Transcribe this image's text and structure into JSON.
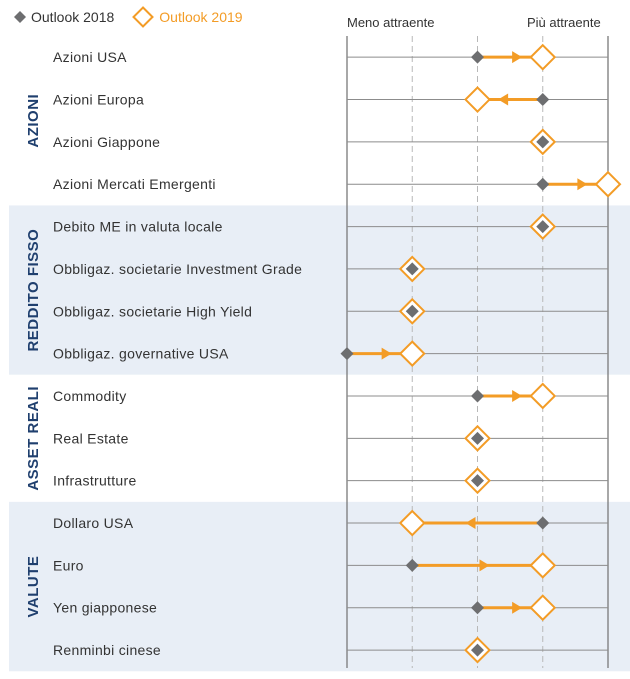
{
  "legend": {
    "outlook_2018": "Outlook 2018",
    "outlook_2019": "Outlook 2019"
  },
  "colors": {
    "outlook_2018": "#6d6e70",
    "outlook_2019": "#f39c26",
    "group_label": "#1f3f6e",
    "band_shaded": "#e8eef6"
  },
  "chart_data": {
    "type": "dot-arrow",
    "scale_labels": {
      "low": "Meno attraente",
      "high": "Più attraente"
    },
    "scale_levels": [
      0,
      1,
      2,
      3,
      4
    ],
    "groups": [
      {
        "name": "AZIONI",
        "shaded": false,
        "rows": [
          {
            "label": "Azioni USA",
            "y2018": 2,
            "y2019": 3
          },
          {
            "label": "Azioni Europa",
            "y2018": 3,
            "y2019": 2
          },
          {
            "label": "Azioni Giappone",
            "y2018": 3,
            "y2019": 3
          },
          {
            "label": "Azioni Mercati Emergenti",
            "y2018": 3,
            "y2019": 4
          }
        ]
      },
      {
        "name": "REDDITO FISSO",
        "shaded": true,
        "rows": [
          {
            "label": "Debito ME in valuta locale",
            "y2018": 3,
            "y2019": 3
          },
          {
            "label": "Obbligaz. societarie Investment Grade",
            "y2018": 1,
            "y2019": 1
          },
          {
            "label": "Obbligaz. societarie High Yield",
            "y2018": 1,
            "y2019": 1
          },
          {
            "label": "Obbligaz. governative USA",
            "y2018": 0,
            "y2019": 1
          }
        ]
      },
      {
        "name": "ASSET REALI",
        "shaded": false,
        "rows": [
          {
            "label": "Commodity",
            "y2018": 2,
            "y2019": 3
          },
          {
            "label": "Real Estate",
            "y2018": 2,
            "y2019": 2
          },
          {
            "label": "Infrastrutture",
            "y2018": 2,
            "y2019": 2
          }
        ]
      },
      {
        "name": "VALUTE",
        "shaded": true,
        "rows": [
          {
            "label": "Dollaro USA",
            "y2018": 3,
            "y2019": 1
          },
          {
            "label": "Euro",
            "y2018": 1,
            "y2019": 3
          },
          {
            "label": "Yen giapponese",
            "y2018": 2,
            "y2019": 3
          },
          {
            "label": "Renminbi cinese",
            "y2018": 2,
            "y2019": 2
          }
        ]
      }
    ]
  }
}
